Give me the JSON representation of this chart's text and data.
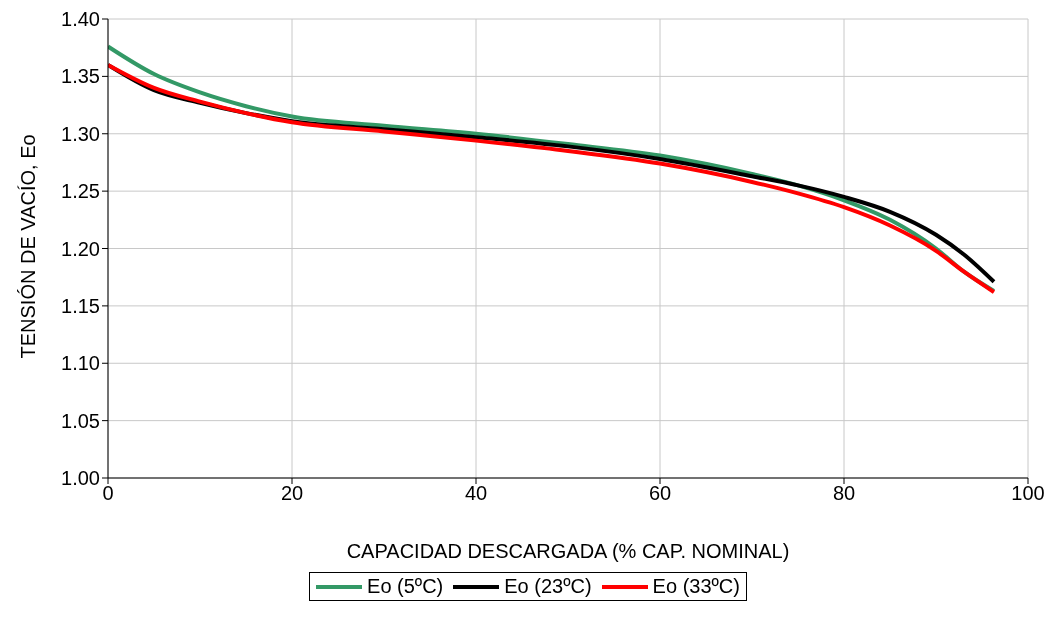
{
  "chart_data": {
    "type": "line",
    "xlabel": "CAPACIDAD DESCARGADA (% CAP. NOMINAL)",
    "ylabel": "TENSIÓN DE VACÍO, Eo",
    "x": [
      0,
      5,
      10,
      15,
      20,
      30,
      40,
      50,
      60,
      70,
      75,
      80,
      85,
      90,
      93,
      96.3
    ],
    "series": [
      {
        "name": "Eo (5ºC)",
        "color": "#339966",
        "values": [
          1.376,
          1.352,
          1.336,
          1.324,
          1.315,
          1.307,
          1.3,
          1.291,
          1.281,
          1.265,
          1.255,
          1.242,
          1.225,
          1.2,
          1.18,
          1.163
        ]
      },
      {
        "name": "Eo (23ºC)",
        "color": "#000000",
        "values": [
          1.36,
          1.338,
          1.327,
          1.318,
          1.311,
          1.304,
          1.297,
          1.289,
          1.278,
          1.263,
          1.255,
          1.245,
          1.232,
          1.212,
          1.195,
          1.171
        ]
      },
      {
        "name": "Eo (33ºC)",
        "color": "#ff0000",
        "values": [
          1.36,
          1.34,
          1.328,
          1.318,
          1.31,
          1.302,
          1.294,
          1.285,
          1.274,
          1.258,
          1.248,
          1.236,
          1.22,
          1.198,
          1.18,
          1.162
        ]
      }
    ],
    "xlim": [
      0,
      100
    ],
    "xticks": [
      0,
      20,
      40,
      60,
      80,
      100
    ],
    "ylim": [
      1.0,
      1.4
    ],
    "yticks": [
      {
        "value": 1.0,
        "label": "1.00"
      },
      {
        "value": 1.05,
        "label": "1.05"
      },
      {
        "value": 1.1,
        "label": "1.10"
      },
      {
        "value": 1.15,
        "label": "1.15"
      },
      {
        "value": 1.2,
        "label": "1.20"
      },
      {
        "value": 1.25,
        "label": "1.25"
      },
      {
        "value": 1.3,
        "label": "1.30"
      },
      {
        "value": 1.35,
        "label": "1.35"
      },
      {
        "value": 1.4,
        "label": "1.40"
      }
    ],
    "grid": true,
    "legend": "bottom",
    "marker": "none",
    "line_style": "solid"
  }
}
